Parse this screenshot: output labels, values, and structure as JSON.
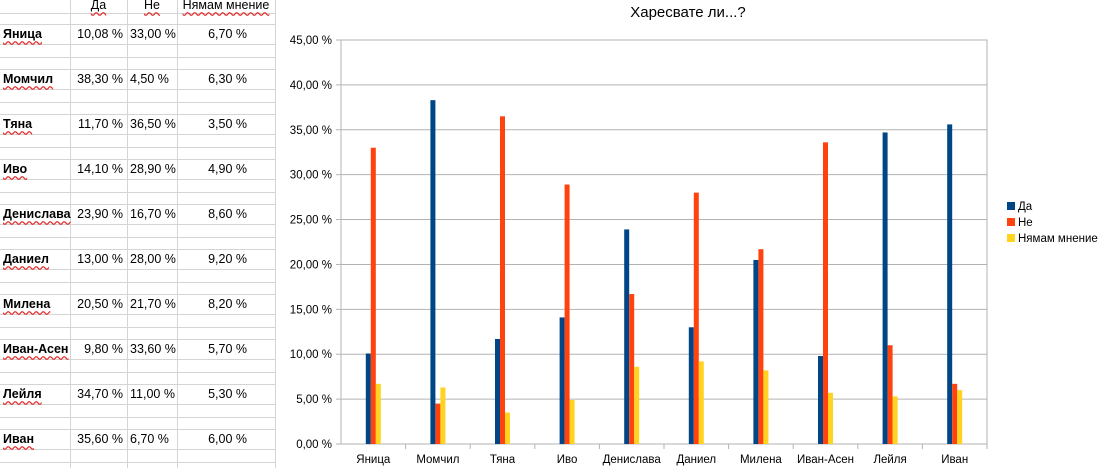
{
  "sheet": {
    "headers": [
      "Да",
      "Не",
      "Нямам мнение"
    ],
    "rows": [
      {
        "name": "Яница",
        "da": "10,08 %",
        "ne": "33,00 %",
        "nm": "6,70 %"
      },
      {
        "name": "Момчил",
        "da": "38,30 %",
        "ne": "4,50 %",
        "nm": "6,30 %"
      },
      {
        "name": "Тяна",
        "da": "11,70 %",
        "ne": "36,50 %",
        "nm": "3,50 %"
      },
      {
        "name": "Иво",
        "da": "14,10 %",
        "ne": "28,90 %",
        "nm": "4,90 %"
      },
      {
        "name": "Денислава",
        "da": "23,90 %",
        "ne": "16,70 %",
        "nm": "8,60 %"
      },
      {
        "name": "Даниел",
        "da": "13,00 %",
        "ne": "28,00 %",
        "nm": "9,20 %"
      },
      {
        "name": "Милена",
        "da": "20,50 %",
        "ne": "21,70 %",
        "nm": "8,20 %"
      },
      {
        "name": "Иван-Асен",
        "da": "9,80 %",
        "ne": "33,60 %",
        "nm": "5,70 %"
      },
      {
        "name": "Лейля",
        "da": "34,70 %",
        "ne": "11,00 %",
        "nm": "5,30 %"
      },
      {
        "name": "Иван",
        "da": "35,60 %",
        "ne": "6,70 %",
        "nm": "6,00 %"
      }
    ]
  },
  "chart_data": {
    "type": "bar",
    "title": "Харесвате ли...?",
    "categories": [
      "Яница",
      "Момчил",
      "Тяна",
      "Иво",
      "Денислава",
      "Даниел",
      "Милена",
      "Иван-Асен",
      "Лейля",
      "Иван"
    ],
    "series": [
      {
        "name": "Да",
        "color": "#004586",
        "values": [
          10.08,
          38.3,
          11.7,
          14.1,
          23.9,
          13.0,
          20.5,
          9.8,
          34.7,
          35.6
        ]
      },
      {
        "name": "Не",
        "color": "#ff420e",
        "values": [
          33.0,
          4.5,
          36.5,
          28.9,
          16.7,
          28.0,
          21.7,
          33.6,
          11.0,
          6.7
        ]
      },
      {
        "name": "Нямам мнение",
        "color": "#ffd320",
        "values": [
          6.7,
          6.3,
          3.5,
          4.9,
          8.6,
          9.2,
          8.2,
          5.7,
          5.3,
          6.0
        ]
      }
    ],
    "ylim": [
      0,
      45
    ],
    "ytick_labels": [
      "0,00 %",
      "5,00 %",
      "10,00 %",
      "15,00 %",
      "20,00 %",
      "25,00 %",
      "30,00 %",
      "35,00 %",
      "40,00 %",
      "45,00 %"
    ],
    "grid": true,
    "legend": "right"
  }
}
